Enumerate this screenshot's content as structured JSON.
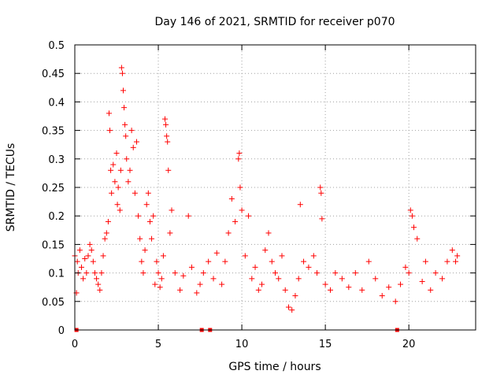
{
  "chart_data": {
    "type": "scatter",
    "title": "Day 146 of 2021, SRMTID for receiver p070",
    "xlabel": "GPS time / hours",
    "ylabel": "SRMTID / TECUs",
    "xlim": [
      0,
      24
    ],
    "ylim": [
      0,
      0.5
    ],
    "xticks": [
      0,
      5,
      10,
      15,
      20
    ],
    "xtick_labels": [
      "0",
      "5",
      "10",
      "15",
      "20"
    ],
    "yticks": [
      0,
      0.05,
      0.1,
      0.15,
      0.2,
      0.25,
      0.3,
      0.35,
      0.4,
      0.45,
      0.5
    ],
    "ytick_labels": [
      "0",
      "0.05",
      "0.1",
      "0.15",
      "0.2",
      "0.25",
      "0.3",
      "0.35",
      "0.4",
      "0.45",
      "0.5"
    ],
    "grid": true,
    "marker": "plus",
    "series_color": "#ff0000",
    "series": [
      {
        "name": "SRMTID",
        "points": [
          [
            0.0,
            0.13
          ],
          [
            0.1,
            0.065
          ],
          [
            0.15,
            0.12
          ],
          [
            0.2,
            0.1
          ],
          [
            0.3,
            0.14
          ],
          [
            0.4,
            0.11
          ],
          [
            0.5,
            0.09
          ],
          [
            0.6,
            0.125
          ],
          [
            0.7,
            0.1
          ],
          [
            0.8,
            0.13
          ],
          [
            0.9,
            0.15
          ],
          [
            1.0,
            0.14
          ],
          [
            1.1,
            0.12
          ],
          [
            1.2,
            0.1
          ],
          [
            1.3,
            0.09
          ],
          [
            1.4,
            0.08
          ],
          [
            1.5,
            0.07
          ],
          [
            1.6,
            0.1
          ],
          [
            1.7,
            0.13
          ],
          [
            1.8,
            0.16
          ],
          [
            1.9,
            0.17
          ],
          [
            2.0,
            0.19
          ],
          [
            2.05,
            0.38
          ],
          [
            2.1,
            0.35
          ],
          [
            2.15,
            0.28
          ],
          [
            2.2,
            0.24
          ],
          [
            2.3,
            0.29
          ],
          [
            2.4,
            0.26
          ],
          [
            2.5,
            0.31
          ],
          [
            2.55,
            0.22
          ],
          [
            2.6,
            0.25
          ],
          [
            2.7,
            0.21
          ],
          [
            2.75,
            0.28
          ],
          [
            2.8,
            0.46
          ],
          [
            2.85,
            0.45
          ],
          [
            2.9,
            0.42
          ],
          [
            2.95,
            0.39
          ],
          [
            3.0,
            0.36
          ],
          [
            3.05,
            0.34
          ],
          [
            3.1,
            0.3
          ],
          [
            3.2,
            0.26
          ],
          [
            3.3,
            0.28
          ],
          [
            3.4,
            0.35
          ],
          [
            3.5,
            0.32
          ],
          [
            3.6,
            0.24
          ],
          [
            3.7,
            0.33
          ],
          [
            3.8,
            0.2
          ],
          [
            3.9,
            0.16
          ],
          [
            4.0,
            0.12
          ],
          [
            4.1,
            0.1
          ],
          [
            4.2,
            0.14
          ],
          [
            4.3,
            0.22
          ],
          [
            4.4,
            0.24
          ],
          [
            4.5,
            0.19
          ],
          [
            4.6,
            0.16
          ],
          [
            4.7,
            0.2
          ],
          [
            4.8,
            0.08
          ],
          [
            4.9,
            0.12
          ],
          [
            5.0,
            0.1
          ],
          [
            5.1,
            0.075
          ],
          [
            5.2,
            0.09
          ],
          [
            5.3,
            0.13
          ],
          [
            5.4,
            0.37
          ],
          [
            5.45,
            0.36
          ],
          [
            5.5,
            0.34
          ],
          [
            5.55,
            0.33
          ],
          [
            5.6,
            0.28
          ],
          [
            5.7,
            0.17
          ],
          [
            5.8,
            0.21
          ],
          [
            6.0,
            0.1
          ],
          [
            6.3,
            0.07
          ],
          [
            6.5,
            0.095
          ],
          [
            6.8,
            0.2
          ],
          [
            7.0,
            0.11
          ],
          [
            7.3,
            0.065
          ],
          [
            7.5,
            0.08
          ],
          [
            7.7,
            0.1
          ],
          [
            8.0,
            0.12
          ],
          [
            8.3,
            0.09
          ],
          [
            8.5,
            0.135
          ],
          [
            8.8,
            0.08
          ],
          [
            9.0,
            0.12
          ],
          [
            9.2,
            0.17
          ],
          [
            9.4,
            0.23
          ],
          [
            9.6,
            0.19
          ],
          [
            9.8,
            0.3
          ],
          [
            9.85,
            0.31
          ],
          [
            9.9,
            0.25
          ],
          [
            10.0,
            0.21
          ],
          [
            10.2,
            0.13
          ],
          [
            10.4,
            0.2
          ],
          [
            10.6,
            0.09
          ],
          [
            10.8,
            0.11
          ],
          [
            11.0,
            0.07
          ],
          [
            11.2,
            0.08
          ],
          [
            11.4,
            0.14
          ],
          [
            11.6,
            0.17
          ],
          [
            11.8,
            0.12
          ],
          [
            12.0,
            0.1
          ],
          [
            12.2,
            0.09
          ],
          [
            12.4,
            0.13
          ],
          [
            12.6,
            0.07
          ],
          [
            12.8,
            0.04
          ],
          [
            13.0,
            0.035
          ],
          [
            13.2,
            0.06
          ],
          [
            13.4,
            0.09
          ],
          [
            13.5,
            0.22
          ],
          [
            13.7,
            0.12
          ],
          [
            14.0,
            0.11
          ],
          [
            14.3,
            0.13
          ],
          [
            14.5,
            0.1
          ],
          [
            14.7,
            0.25
          ],
          [
            14.75,
            0.24
          ],
          [
            14.8,
            0.195
          ],
          [
            15.0,
            0.08
          ],
          [
            15.3,
            0.07
          ],
          [
            15.6,
            0.1
          ],
          [
            16.0,
            0.09
          ],
          [
            16.4,
            0.075
          ],
          [
            16.8,
            0.1
          ],
          [
            17.2,
            0.07
          ],
          [
            17.6,
            0.12
          ],
          [
            18.0,
            0.09
          ],
          [
            18.4,
            0.06
          ],
          [
            18.8,
            0.075
          ],
          [
            19.2,
            0.05
          ],
          [
            19.5,
            0.08
          ],
          [
            19.8,
            0.11
          ],
          [
            20.0,
            0.1
          ],
          [
            20.1,
            0.21
          ],
          [
            20.2,
            0.2
          ],
          [
            20.3,
            0.18
          ],
          [
            20.5,
            0.16
          ],
          [
            20.8,
            0.085
          ],
          [
            21.0,
            0.12
          ],
          [
            21.3,
            0.07
          ],
          [
            21.6,
            0.1
          ],
          [
            22.0,
            0.09
          ],
          [
            22.3,
            0.12
          ],
          [
            22.6,
            0.14
          ],
          [
            22.8,
            0.12
          ],
          [
            22.9,
            0.13
          ]
        ]
      }
    ],
    "zero_points": [
      0.1,
      7.6,
      8.1,
      19.3
    ]
  }
}
